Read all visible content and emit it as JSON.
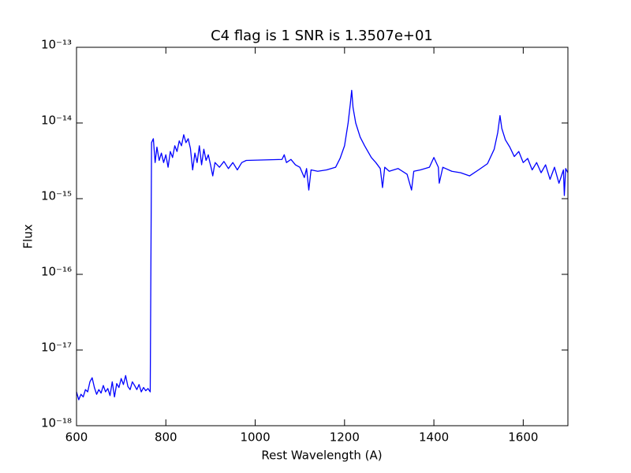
{
  "chart_data": {
    "type": "line",
    "title": "C4 flag is 1 SNR is 1.3507e+01",
    "xlabel": "Rest Wavelength (A)",
    "ylabel": "Flux",
    "yscale": "log",
    "xlim": [
      600,
      1700
    ],
    "ylim": [
      1e-18,
      1e-13
    ],
    "xticks": [
      600,
      800,
      1000,
      1200,
      1400,
      1600
    ],
    "yticks": [
      {
        "value": 1e-18,
        "label": "10⁻¹⁸"
      },
      {
        "value": 1e-17,
        "label": "10⁻¹⁷"
      },
      {
        "value": 1e-16,
        "label": "10⁻¹⁶"
      },
      {
        "value": 1e-15,
        "label": "10⁻¹⁵"
      },
      {
        "value": 1e-14,
        "label": "10⁻¹⁴"
      },
      {
        "value": 1e-13,
        "label": "10⁻¹³"
      }
    ],
    "x": [
      600,
      605,
      610,
      615,
      620,
      625,
      630,
      635,
      640,
      645,
      650,
      655,
      660,
      665,
      670,
      675,
      680,
      685,
      690,
      695,
      700,
      705,
      710,
      715,
      720,
      725,
      730,
      735,
      740,
      745,
      750,
      755,
      760,
      765,
      768,
      772,
      776,
      780,
      785,
      790,
      795,
      800,
      805,
      810,
      815,
      820,
      825,
      830,
      835,
      840,
      845,
      850,
      855,
      860,
      865,
      870,
      875,
      880,
      885,
      890,
      895,
      900,
      905,
      910,
      920,
      930,
      940,
      950,
      960,
      970,
      980,
      1060,
      1065,
      1070,
      1080,
      1090,
      1100,
      1110,
      1115,
      1120,
      1125,
      1140,
      1160,
      1180,
      1190,
      1200,
      1208,
      1213,
      1216,
      1219,
      1225,
      1235,
      1245,
      1260,
      1270,
      1280,
      1285,
      1290,
      1300,
      1320,
      1340,
      1350,
      1355,
      1370,
      1390,
      1400,
      1410,
      1412,
      1420,
      1440,
      1460,
      1480,
      1500,
      1520,
      1535,
      1543,
      1548,
      1552,
      1560,
      1570,
      1580,
      1590,
      1600,
      1610,
      1620,
      1630,
      1640,
      1650,
      1660,
      1670,
      1680,
      1690,
      1692,
      1695,
      1700
    ],
    "series": [
      {
        "color": "#0000ff",
        "values": [
          2.8e-18,
          2.2e-18,
          2.6e-18,
          2.4e-18,
          3e-18,
          2.8e-18,
          3.8e-18,
          4.3e-18,
          3.2e-18,
          2.6e-18,
          3e-18,
          2.7e-18,
          3.4e-18,
          2.8e-18,
          3.1e-18,
          2.5e-18,
          3.8e-18,
          2.4e-18,
          3.6e-18,
          3.2e-18,
          4.2e-18,
          3.5e-18,
          4.6e-18,
          3.3e-18,
          3e-18,
          3.8e-18,
          3.4e-18,
          3e-18,
          3.5e-18,
          2.8e-18,
          3.2e-18,
          2.9e-18,
          3.1e-18,
          2.8e-18,
          5.5e-15,
          6.2e-15,
          3e-15,
          4.8e-15,
          3.2e-15,
          4e-15,
          3e-15,
          3.8e-15,
          2.6e-15,
          4.2e-15,
          3.5e-15,
          5e-15,
          4.2e-15,
          5.8e-15,
          5e-15,
          7e-15,
          5.5e-15,
          6.2e-15,
          4.6e-15,
          2.4e-15,
          4e-15,
          3e-15,
          5e-15,
          2.8e-15,
          4.5e-15,
          3.2e-15,
          3.8e-15,
          2.8e-15,
          2e-15,
          3e-15,
          2.6e-15,
          3.1e-15,
          2.5e-15,
          3e-15,
          2.4e-15,
          3e-15,
          3.2e-15,
          3.3e-15,
          3.8e-15,
          3e-15,
          3.3e-15,
          2.8e-15,
          2.6e-15,
          1.9e-15,
          2.5e-15,
          1.3e-15,
          2.4e-15,
          2.3e-15,
          2.4e-15,
          2.6e-15,
          3.4e-15,
          5e-15,
          1e-14,
          1.8e-14,
          2.7e-14,
          1.6e-14,
          1e-14,
          6.5e-15,
          5e-15,
          3.5e-15,
          3e-15,
          2.5e-15,
          1.4e-15,
          2.6e-15,
          2.3e-15,
          2.5e-15,
          2.1e-15,
          1.3e-15,
          2.3e-15,
          2.4e-15,
          2.6e-15,
          3.5e-15,
          2.6e-15,
          1.6e-15,
          2.6e-15,
          2.3e-15,
          2.2e-15,
          2e-15,
          2.4e-15,
          2.9e-15,
          4.5e-15,
          7.5e-15,
          1.25e-14,
          8.5e-15,
          6e-15,
          4.8e-15,
          3.6e-15,
          4.2e-15,
          3e-15,
          3.4e-15,
          2.4e-15,
          3e-15,
          2.2e-15,
          2.8e-15,
          1.8e-15,
          2.6e-15,
          1.6e-15,
          2.4e-15,
          1.1e-15,
          2.5e-15,
          2.2e-15
        ]
      }
    ]
  }
}
